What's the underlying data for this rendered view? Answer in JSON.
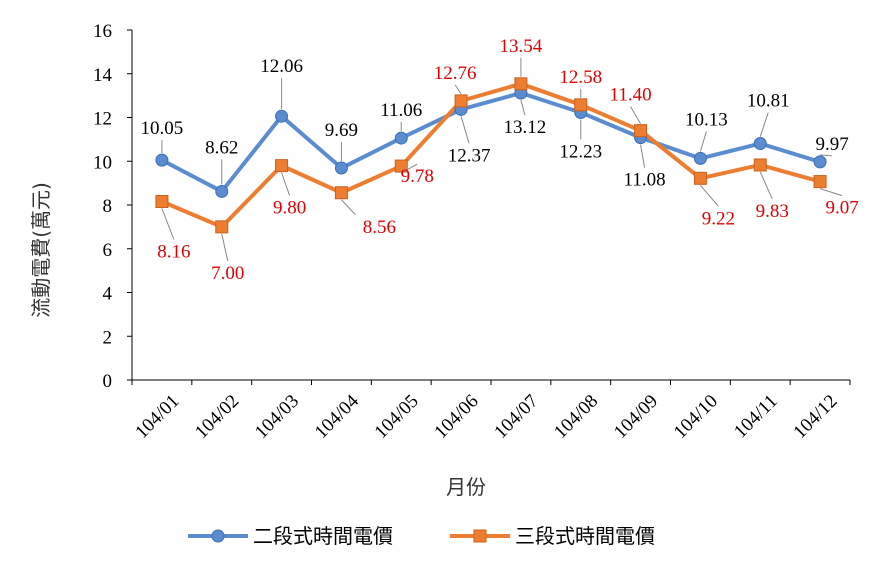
{
  "chart_data": {
    "type": "line",
    "categories": [
      "104/01",
      "104/02",
      "104/03",
      "104/04",
      "104/05",
      "104/06",
      "104/07",
      "104/08",
      "104/09",
      "104/10",
      "104/11",
      "104/12"
    ],
    "series": [
      {
        "name": "二段式時間電價",
        "color": "#5b8ccf",
        "marker": "circle",
        "values": [
          10.05,
          8.62,
          12.06,
          9.69,
          11.06,
          12.37,
          13.12,
          12.23,
          11.08,
          10.13,
          10.81,
          9.97
        ],
        "labels": [
          "10.05",
          "8.62",
          "12.06",
          "9.69",
          "11.06",
          "12.37",
          "13.12",
          "12.23",
          "11.08",
          "10.13",
          "10.81",
          "9.97"
        ]
      },
      {
        "name": "三段式時間電價",
        "color": "#ed7d31",
        "marker": "square",
        "values": [
          8.16,
          7.0,
          9.8,
          8.56,
          9.78,
          12.76,
          13.54,
          12.58,
          11.4,
          9.22,
          9.83,
          9.07
        ],
        "labels": [
          "8.16",
          "7.00",
          "9.80",
          "8.56",
          "9.78",
          "12.76",
          "13.54",
          "12.58",
          "11.40",
          "9.22",
          "9.83",
          "9.07"
        ]
      }
    ],
    "xlabel": "月份",
    "ylabel": "流動電費(萬元)",
    "ylim": [
      0,
      16
    ],
    "yticks": [
      "0",
      "2",
      "4",
      "6",
      "8",
      "10",
      "12",
      "14",
      "16"
    ],
    "grid": false,
    "legend_position": "bottom",
    "label_colors": {
      "series1": "#000000",
      "series2": "#e00000"
    }
  }
}
